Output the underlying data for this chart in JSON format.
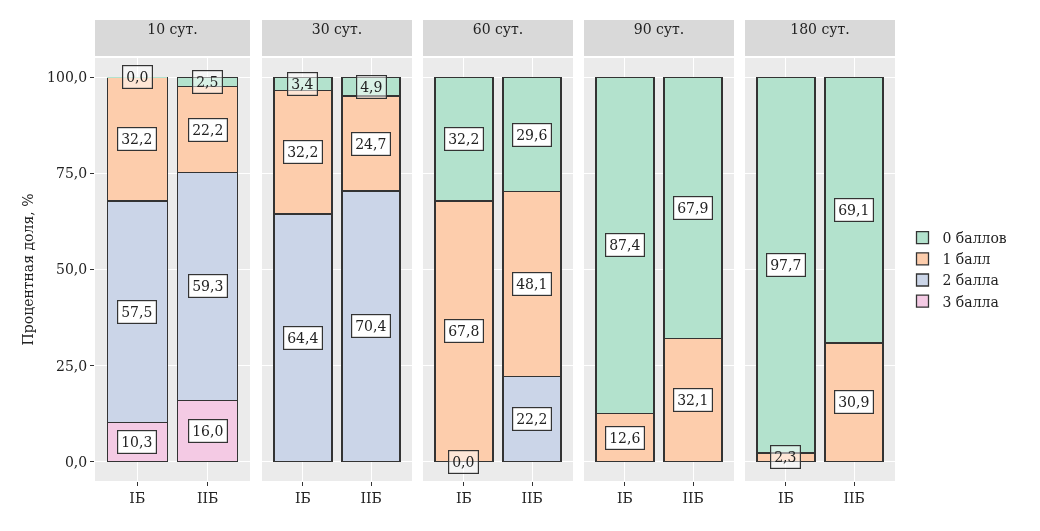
{
  "chart_data": [
    {
      "type": "bar",
      "title": "10 сут.",
      "ylabel": "Процентная доля, %",
      "categories": [
        "IБ",
        "IIБ"
      ],
      "stacked": true,
      "ylim": [
        -5,
        105
      ],
      "yticks": [
        {
          "value": 0,
          "label": "0,0"
        },
        {
          "value": 25,
          "label": "25,0"
        },
        {
          "value": 50,
          "label": "50,0"
        },
        {
          "value": 75,
          "label": "75,0"
        },
        {
          "value": 100,
          "label": "100,0"
        }
      ],
      "grid": true,
      "series": [
        {
          "color": "#f4cae4",
          "values": [
            10.3,
            16.0
          ],
          "value_labels": [
            "10,3",
            "16,0"
          ]
        },
        {
          "color": "#cbd5e8",
          "values": [
            57.5,
            59.3
          ],
          "value_labels": [
            "57,5",
            "59,3"
          ]
        },
        {
          "color": "#fdcdac",
          "values": [
            32.2,
            22.2
          ],
          "value_labels": [
            "32,2",
            "22,2"
          ]
        },
        {
          "color": "#b3e2cd",
          "values": [
            0,
            2.5
          ],
          "value_labels": [
            "0,0",
            "2,5"
          ]
        }
      ]
    },
    {
      "type": "bar",
      "title": "30 сут.",
      "categories": [
        "IБ",
        "IIБ"
      ],
      "stacked": true,
      "ylim": [
        -5,
        105
      ],
      "yticks": [
        {
          "value": 0,
          "label": null
        },
        {
          "value": 25,
          "label": null
        },
        {
          "value": 50,
          "label": null
        },
        {
          "value": 75,
          "label": null
        },
        {
          "value": 100,
          "label": null
        }
      ],
      "tick_labels": "x",
      "grid": true,
      "series": [
        {
          "color": "#f4cae4",
          "values": [
            null,
            null
          ],
          "value_labels": [
            null,
            null
          ]
        },
        {
          "color": "#cbd5e8",
          "values": [
            64.4,
            70.4
          ],
          "value_labels": [
            "64,4",
            "70,4"
          ]
        },
        {
          "color": "#fdcdac",
          "values": [
            32.2,
            24.7
          ],
          "value_labels": [
            "32,2",
            "24,7"
          ]
        },
        {
          "color": "#b3e2cd",
          "values": [
            3.4,
            4.9
          ],
          "value_labels": [
            "3,4",
            "4,9"
          ]
        }
      ]
    },
    {
      "type": "bar",
      "title": "60 сут.",
      "categories": [
        "IБ",
        "IIБ"
      ],
      "stacked": true,
      "ylim": [
        -5,
        105
      ],
      "yticks": [
        {
          "value": 0,
          "label": null
        },
        {
          "value": 25,
          "label": null
        },
        {
          "value": 50,
          "label": null
        },
        {
          "value": 75,
          "label": null
        },
        {
          "value": 100,
          "label": null
        }
      ],
      "tick_labels": "x",
      "grid": true,
      "series": [
        {
          "color": "#f4cae4",
          "values": [
            null,
            null
          ],
          "value_labels": [
            null,
            null
          ]
        },
        {
          "color": "#cbd5e8",
          "values": [
            0,
            22.2
          ],
          "value_labels": [
            "0,0",
            "22,2"
          ]
        },
        {
          "color": "#fdcdac",
          "values": [
            67.8,
            48.1
          ],
          "value_labels": [
            "67,8",
            "48,1"
          ]
        },
        {
          "color": "#b3e2cd",
          "values": [
            32.2,
            29.6
          ],
          "value_labels": [
            "32,2",
            "29,6"
          ]
        }
      ]
    },
    {
      "type": "bar",
      "title": "90 сут.",
      "categories": [
        "IБ",
        "IIБ"
      ],
      "stacked": true,
      "ylim": [
        -5,
        105
      ],
      "yticks": [
        {
          "value": 0,
          "label": null
        },
        {
          "value": 25,
          "label": null
        },
        {
          "value": 50,
          "label": null
        },
        {
          "value": 75,
          "label": null
        },
        {
          "value": 100,
          "label": null
        }
      ],
      "tick_labels": "x",
      "grid": true,
      "series": [
        {
          "color": "#f4cae4",
          "values": [
            null,
            null
          ],
          "value_labels": [
            null,
            null
          ]
        },
        {
          "color": "#cbd5e8",
          "values": [
            null,
            null
          ],
          "value_labels": [
            null,
            null
          ]
        },
        {
          "color": "#fdcdac",
          "values": [
            12.6,
            32.1
          ],
          "value_labels": [
            "12,6",
            "32,1"
          ]
        },
        {
          "color": "#b3e2cd",
          "values": [
            87.4,
            67.9
          ],
          "value_labels": [
            "87,4",
            "67,9"
          ]
        }
      ]
    },
    {
      "type": "bar",
      "title": "180 сут.",
      "categories": [
        "IБ",
        "IIБ"
      ],
      "stacked": true,
      "ylim": [
        -5,
        105
      ],
      "yticks": [
        {
          "value": 0,
          "label": null
        },
        {
          "value": 25,
          "label": null
        },
        {
          "value": 50,
          "label": null
        },
        {
          "value": 75,
          "label": null
        },
        {
          "value": 100,
          "label": null
        }
      ],
      "tick_labels": "x",
      "grid": true,
      "legend": "right",
      "series": [
        {
          "name": "3 балла",
          "color": "#f4cae4",
          "values": [
            null,
            null
          ],
          "value_labels": [
            null,
            null
          ]
        },
        {
          "name": "2 балла",
          "color": "#cbd5e8",
          "values": [
            null,
            null
          ],
          "value_labels": [
            null,
            null
          ]
        },
        {
          "name": "1 балл",
          "color": "#fdcdac",
          "values": [
            2.3,
            30.9
          ],
          "value_labels": [
            "2,3",
            "30,9"
          ]
        },
        {
          "name": "0 баллов",
          "color": "#b3e2cd",
          "values": [
            97.7,
            69.1
          ],
          "value_labels": [
            "97,7",
            "69,1"
          ]
        }
      ]
    }
  ]
}
